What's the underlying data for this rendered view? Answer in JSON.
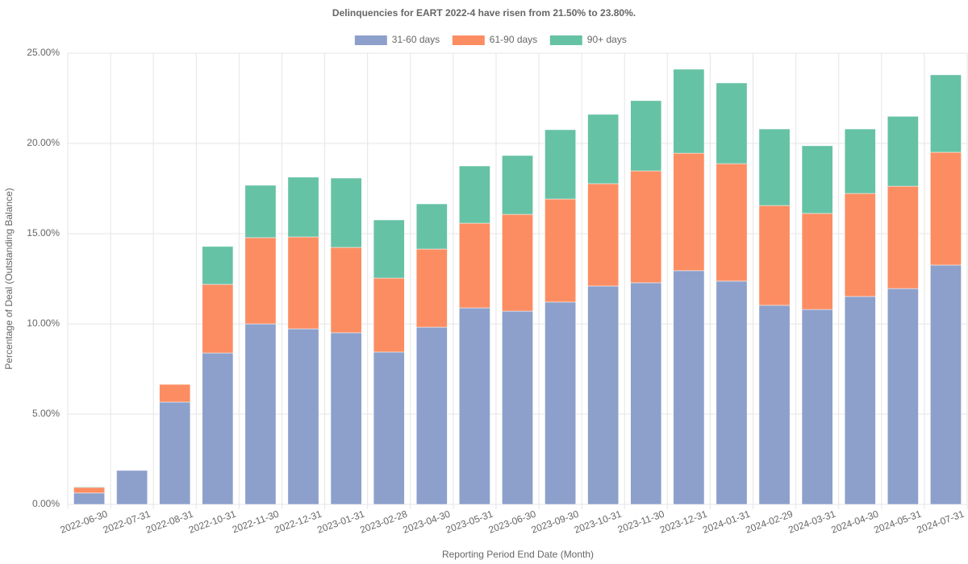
{
  "chart_data": {
    "type": "stacked_bar",
    "title": "Delinquencies for EART 2022-4 have risen from 21.50% to 23.80%.",
    "x_label": "Reporting Period End Date (Month)",
    "y_label": "Percentage of Deal (Outstanding Balance)",
    "categories": [
      "2022-06-30",
      "2022-07-31",
      "2022-08-31",
      "2022-10-31",
      "2022-11-30",
      "2022-12-31",
      "2023-01-31",
      "2023-02-28",
      "2023-04-30",
      "2023-05-31",
      "2023-06-30",
      "2023-09-30",
      "2023-10-31",
      "2023-11-30",
      "2023-12-31",
      "2024-01-31",
      "2024-02-29",
      "2024-03-31",
      "2024-04-30",
      "2024-05-31",
      "2024-07-31"
    ],
    "series": [
      {
        "name": "31-60 days",
        "color": "#8da0cb",
        "values": [
          0.63,
          1.88,
          5.67,
          8.39,
          10.0,
          9.73,
          9.51,
          8.44,
          9.82,
          10.89,
          10.71,
          11.21,
          12.1,
          12.28,
          12.95,
          12.37,
          11.03,
          10.8,
          11.52,
          11.96,
          13.26
        ]
      },
      {
        "name": "61-90 days",
        "color": "#fc8d62",
        "values": [
          0.31,
          0,
          0.98,
          3.8,
          4.78,
          5.09,
          4.73,
          4.1,
          4.33,
          4.69,
          5.36,
          5.71,
          5.67,
          6.2,
          6.51,
          6.51,
          5.53,
          5.32,
          5.71,
          5.67,
          6.25
        ]
      },
      {
        "name": "90+ days",
        "color": "#66c2a5",
        "values": [
          0.04,
          0,
          0,
          2.1,
          2.9,
          3.31,
          3.84,
          3.22,
          2.5,
          3.17,
          3.26,
          3.84,
          3.84,
          3.89,
          4.65,
          4.47,
          4.24,
          3.75,
          3.57,
          3.87,
          4.29
        ]
      }
    ],
    "ylim": [
      0,
      25
    ],
    "yticks": [
      {
        "value": 0,
        "label": "0.00%"
      },
      {
        "value": 5,
        "label": "5.00%"
      },
      {
        "value": 10,
        "label": "10.00%"
      },
      {
        "value": 15,
        "label": "15.00%"
      },
      {
        "value": 20,
        "label": "20.00%"
      },
      {
        "value": 25,
        "label": "25.00%"
      }
    ],
    "grid": true,
    "legend": "top"
  }
}
